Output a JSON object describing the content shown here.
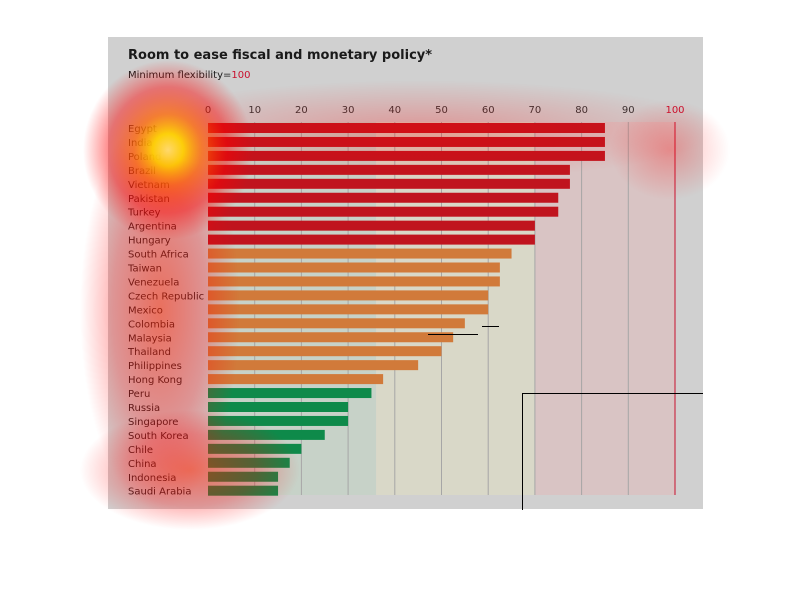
{
  "chart_data": {
    "type": "bar",
    "orientation": "horizontal",
    "title": "Room to ease fiscal and monetary policy*",
    "subtitle_prefix": "Minimum flexibility=",
    "subtitle_value": "100",
    "xlim": [
      0,
      100
    ],
    "xticks": [
      "0",
      "10",
      "20",
      "30",
      "40",
      "50",
      "60",
      "70",
      "80",
      "90",
      "100"
    ],
    "grid": true,
    "categories": [
      "Egypt",
      "India",
      "Poland",
      "Brazil",
      "Vietnam",
      "Pakistan",
      "Turkey",
      "Argentina",
      "Hungary",
      "South Africa",
      "Taiwan",
      "Venezuela",
      "Czech Republic",
      "Mexico",
      "Colombia",
      "Malaysia",
      "Thailand",
      "Philippines",
      "Hong Kong",
      "Peru",
      "Russia",
      "Singapore",
      "South Korea",
      "Chile",
      "China",
      "Indonesia",
      "Saudi Arabia"
    ],
    "values": [
      85,
      85,
      85,
      77.5,
      77.5,
      75,
      75,
      70,
      70,
      65,
      62.5,
      62.5,
      60,
      60,
      55,
      52.5,
      50,
      45,
      37.5,
      35,
      30,
      30,
      25,
      20,
      17.5,
      15,
      15
    ],
    "groups": [
      "high",
      "high",
      "high",
      "high",
      "high",
      "high",
      "high",
      "high",
      "high",
      "mid",
      "mid",
      "mid",
      "mid",
      "mid",
      "mid",
      "mid",
      "mid",
      "mid",
      "mid",
      "low",
      "low",
      "low",
      "low",
      "low",
      "low",
      "low",
      "low"
    ],
    "bands": [
      {
        "group": "low",
        "from": 0,
        "to": 36
      },
      {
        "group": "mid",
        "from": 36,
        "to": 70
      },
      {
        "group": "high",
        "from": 70,
        "to": 100
      }
    ],
    "colors": {
      "high": "#c0141e",
      "mid": "#d17a3a",
      "low": "#0e8a4a",
      "band_low": "#c7d2c8",
      "band_mid": "#d9d8c8",
      "band_high": "#d9c4c4",
      "accent": "#c8102e"
    }
  }
}
